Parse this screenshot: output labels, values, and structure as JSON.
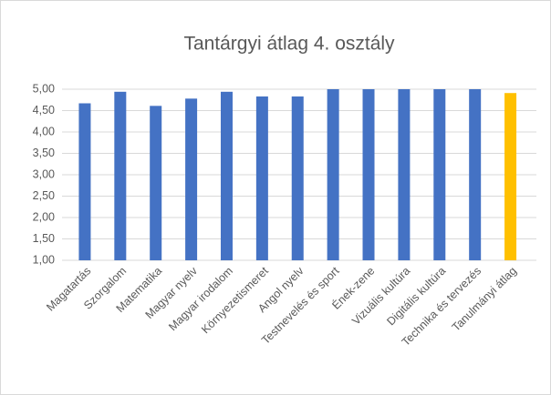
{
  "chart_data": {
    "type": "bar",
    "title": "Tantárgyi átlag 4. osztály",
    "categories": [
      "Magatartás",
      "Szorgalom",
      "Matematika",
      "Magyar nyelv",
      "Magyar irodalom",
      "Környezetismeret",
      "Angol nyelv",
      "Testnevelés és sport",
      "Ének-zene",
      "Vizuális kultúra",
      "Digitális kultúra",
      "Technika és tervezés",
      "Tanulmányi átlag"
    ],
    "values": [
      4.67,
      4.94,
      4.61,
      4.78,
      4.94,
      4.83,
      4.83,
      5,
      5,
      5,
      5,
      5,
      4.91
    ],
    "colors": [
      "#4472c4",
      "#4472c4",
      "#4472c4",
      "#4472c4",
      "#4472c4",
      "#4472c4",
      "#4472c4",
      "#4472c4",
      "#4472c4",
      "#4472c4",
      "#4472c4",
      "#4472c4",
      "#ffc000"
    ],
    "ylim": [
      1,
      5
    ],
    "yticks": [
      {
        "value": 1,
        "label": "1,00"
      },
      {
        "value": 1.5,
        "label": "1,50"
      },
      {
        "value": 2,
        "label": "2,00"
      },
      {
        "value": 2.5,
        "label": "2,50"
      },
      {
        "value": 3,
        "label": "3,00"
      },
      {
        "value": 3.5,
        "label": "3,50"
      },
      {
        "value": 4,
        "label": "4,00"
      },
      {
        "value": 4.5,
        "label": "4,50"
      },
      {
        "value": 5,
        "label": "5,00"
      }
    ],
    "grid": true
  }
}
